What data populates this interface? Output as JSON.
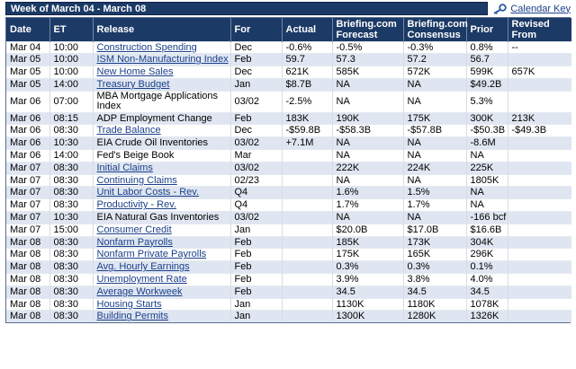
{
  "header": {
    "week_title": "Week of March 04 - March 08",
    "calendar_key_label": "Calendar Key"
  },
  "columns": [
    "Date",
    "ET",
    "Release",
    "For",
    "Actual",
    "Briefing.com Forecast",
    "Briefing.com Consensus",
    "Prior",
    "Revised From"
  ],
  "rows": [
    {
      "date": "Mar 04",
      "et": "10:00",
      "release": "Construction Spending",
      "link": true,
      "for": "Dec",
      "actual": "-0.6%",
      "forecast": "-0.5%",
      "consensus": "-0.3%",
      "prior": "0.8%",
      "revised": "--"
    },
    {
      "date": "Mar 05",
      "et": "10:00",
      "release": "ISM Non-Manufacturing Index",
      "link": true,
      "for": "Feb",
      "actual": "59.7",
      "forecast": "57.3",
      "consensus": "57.2",
      "prior": "56.7",
      "revised": ""
    },
    {
      "date": "Mar 05",
      "et": "10:00",
      "release": "New Home Sales",
      "link": true,
      "for": "Dec",
      "actual": "621K",
      "forecast": "585K",
      "consensus": "572K",
      "prior": "599K",
      "revised": "657K"
    },
    {
      "date": "Mar 05",
      "et": "14:00",
      "release": "Treasury Budget",
      "link": true,
      "for": "Jan",
      "actual": "$8.7B",
      "forecast": "NA",
      "consensus": "NA",
      "prior": "$49.2B",
      "revised": ""
    },
    {
      "date": "Mar 06",
      "et": "07:00",
      "release": "MBA Mortgage Applications Index",
      "link": false,
      "for": "03/02",
      "actual": "-2.5%",
      "forecast": "NA",
      "consensus": "NA",
      "prior": "5.3%",
      "revised": "",
      "tall": true
    },
    {
      "date": "Mar 06",
      "et": "08:15",
      "release": "ADP Employment Change",
      "link": false,
      "for": "Feb",
      "actual": "183K",
      "forecast": "190K",
      "consensus": "175K",
      "prior": "300K",
      "revised": "213K"
    },
    {
      "date": "Mar 06",
      "et": "08:30",
      "release": "Trade Balance",
      "link": true,
      "for": "Dec",
      "actual": "-$59.8B",
      "forecast": "-$58.3B",
      "consensus": "-$57.8B",
      "prior": "-$50.3B",
      "revised": "-$49.3B"
    },
    {
      "date": "Mar 06",
      "et": "10:30",
      "release": "EIA Crude Oil Inventories",
      "link": false,
      "for": "03/02",
      "actual": "+7.1M",
      "forecast": "NA",
      "consensus": "NA",
      "prior": "-8.6M",
      "revised": ""
    },
    {
      "date": "Mar 06",
      "et": "14:00",
      "release": "Fed's Beige Book",
      "link": false,
      "for": "Mar",
      "actual": "",
      "forecast": "NA",
      "consensus": "NA",
      "prior": "NA",
      "revised": ""
    },
    {
      "date": "Mar 07",
      "et": "08:30",
      "release": "Initial Claims",
      "link": true,
      "for": "03/02",
      "actual": "",
      "forecast": "222K",
      "consensus": "224K",
      "prior": "225K",
      "revised": ""
    },
    {
      "date": "Mar 07",
      "et": "08:30",
      "release": "Continuing Claims",
      "link": true,
      "for": "02/23",
      "actual": "",
      "forecast": "NA",
      "consensus": "NA",
      "prior": "1805K",
      "revised": ""
    },
    {
      "date": "Mar 07",
      "et": "08:30",
      "release": "Unit Labor Costs - Rev.",
      "link": true,
      "for": "Q4",
      "actual": "",
      "forecast": "1.6%",
      "consensus": "1.5%",
      "prior": "NA",
      "revised": ""
    },
    {
      "date": "Mar 07",
      "et": "08:30",
      "release": "Productivity - Rev.",
      "link": true,
      "for": "Q4",
      "actual": "",
      "forecast": "1.7%",
      "consensus": "1.7%",
      "prior": "NA",
      "revised": ""
    },
    {
      "date": "Mar 07",
      "et": "10:30",
      "release": "EIA Natural Gas Inventories",
      "link": false,
      "for": "03/02",
      "actual": "",
      "forecast": "NA",
      "consensus": "NA",
      "prior": "-166 bcf",
      "revised": ""
    },
    {
      "date": "Mar 07",
      "et": "15:00",
      "release": "Consumer Credit",
      "link": true,
      "for": "Jan",
      "actual": "",
      "forecast": "$20.0B",
      "consensus": "$17.0B",
      "prior": "$16.6B",
      "revised": ""
    },
    {
      "date": "Mar 08",
      "et": "08:30",
      "release": "Nonfarm Payrolls",
      "link": true,
      "for": "Feb",
      "actual": "",
      "forecast": "185K",
      "consensus": "173K",
      "prior": "304K",
      "revised": ""
    },
    {
      "date": "Mar 08",
      "et": "08:30",
      "release": "Nonfarm Private Payrolls",
      "link": true,
      "for": "Feb",
      "actual": "",
      "forecast": "175K",
      "consensus": "165K",
      "prior": "296K",
      "revised": ""
    },
    {
      "date": "Mar 08",
      "et": "08:30",
      "release": "Avg. Hourly Earnings",
      "link": true,
      "for": "Feb",
      "actual": "",
      "forecast": "0.3%",
      "consensus": "0.3%",
      "prior": "0.1%",
      "revised": ""
    },
    {
      "date": "Mar 08",
      "et": "08:30",
      "release": "Unemployment Rate",
      "link": true,
      "for": "Feb",
      "actual": "",
      "forecast": "3.9%",
      "consensus": "3.8%",
      "prior": "4.0%",
      "revised": ""
    },
    {
      "date": "Mar 08",
      "et": "08:30",
      "release": "Average Workweek",
      "link": true,
      "for": "Feb",
      "actual": "",
      "forecast": "34.5",
      "consensus": "34.5",
      "prior": "34.5",
      "revised": ""
    },
    {
      "date": "Mar 08",
      "et": "08:30",
      "release": "Housing Starts",
      "link": true,
      "for": "Jan",
      "actual": "",
      "forecast": "1130K",
      "consensus": "1180K",
      "prior": "1078K",
      "revised": ""
    },
    {
      "date": "Mar 08",
      "et": "08:30",
      "release": "Building Permits",
      "link": true,
      "for": "Jan",
      "actual": "",
      "forecast": "1300K",
      "consensus": "1280K",
      "prior": "1326K",
      "revised": ""
    }
  ],
  "colors": {
    "header_bg": "#1c3a66",
    "row_alt_bg": "#dfe6f1",
    "link": "#1a3f8a"
  },
  "icons": {
    "calendar_key": "key-icon"
  }
}
